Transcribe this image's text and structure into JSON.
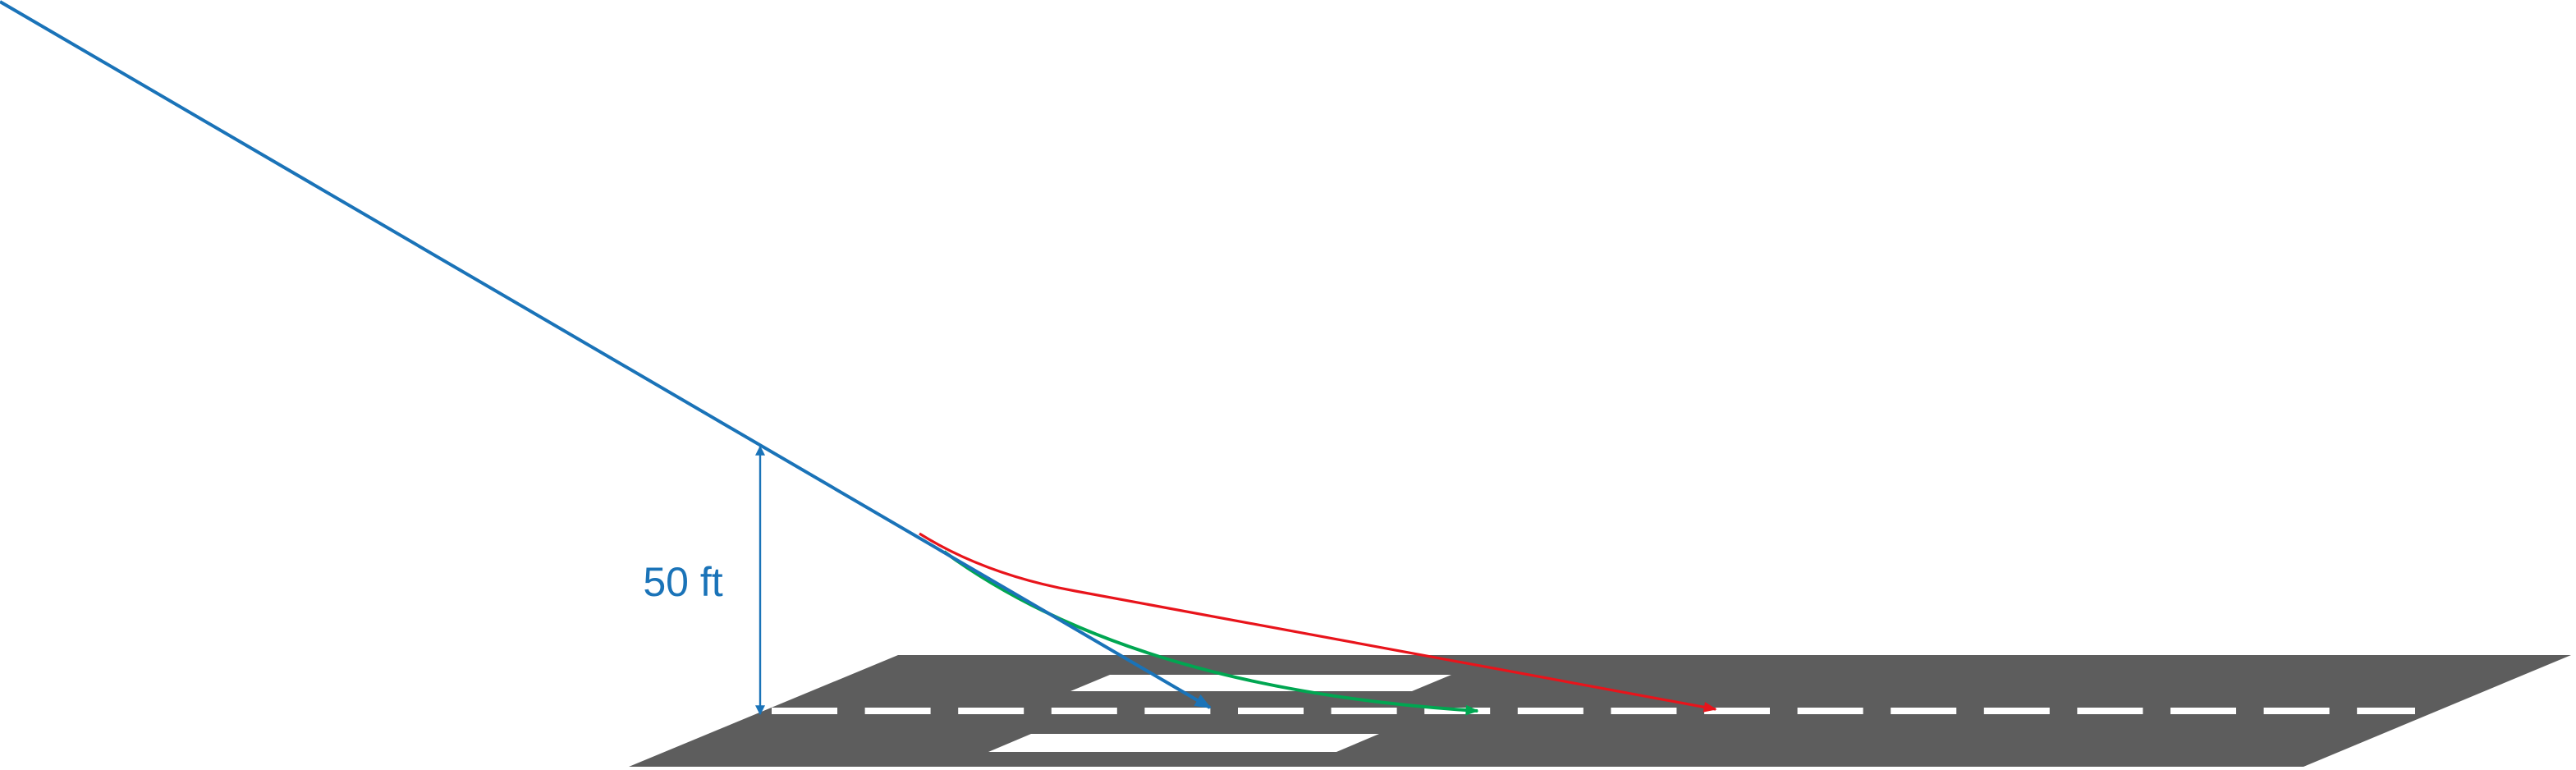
{
  "annotation": {
    "label": "50 ft"
  }
}
